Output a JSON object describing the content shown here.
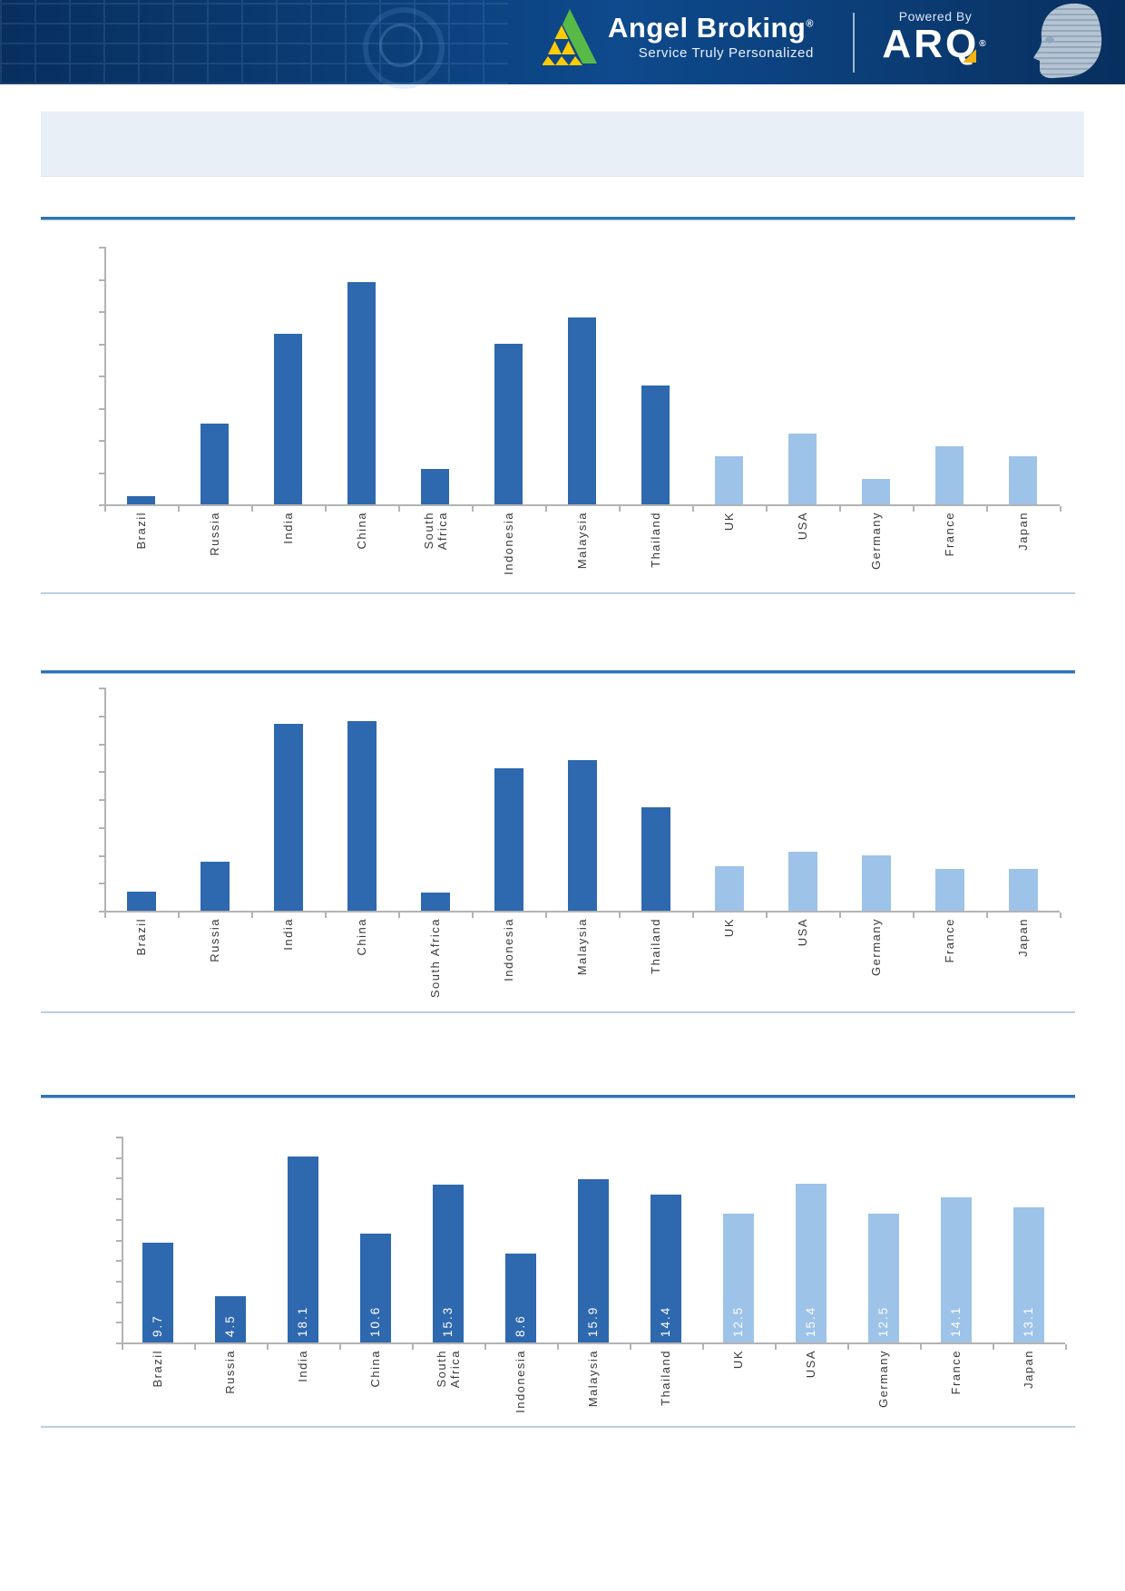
{
  "header": {
    "bg_color": "#0b3c74",
    "brand": {
      "name": "Angel Broking",
      "registered_mark": "®",
      "tagline": "Service Truly Personalized",
      "logo_green": "#58b947",
      "logo_yellow": "#ffcb05"
    },
    "powered_by": {
      "label": "Powered By",
      "product_name": "ARQ",
      "registered_mark": "®",
      "accent_yellow": "#f6b40e"
    }
  },
  "title_box": {
    "text": ""
  },
  "colors": {
    "bar_dark": "#2e68ae",
    "bar_light": "#9dc3e8",
    "rule_blue": "#2e74b5",
    "rule_blue_light": "#9cc2e5",
    "divider_light": "#b9cfe0",
    "axis_gray": "#b3b3b3",
    "category_label_text": "#3a3a3a",
    "value_label_text": "#ffffff",
    "title_box_bg": "#e9eff7"
  },
  "chart_data": [
    {
      "type": "bar",
      "title": "",
      "categories": [
        "Brazil",
        "Russia",
        "India",
        "China",
        "South\nAfrica",
        "Indonesia",
        "Malaysia",
        "Thailand",
        "UK",
        "USA",
        "Germany",
        "France",
        "Japan"
      ],
      "values": [
        0.25,
        2.5,
        5.3,
        6.9,
        1.1,
        5.0,
        5.8,
        3.7,
        1.5,
        2.2,
        0.8,
        1.8,
        1.5
      ],
      "ylim": [
        0,
        8
      ],
      "grid": false,
      "legend": false,
      "y_axis_tick_labels_visible": false,
      "data_labels": false,
      "dark_bar_count": 8,
      "note": "no numeric axis labels shown; values estimated from bar heights against tick marks"
    },
    {
      "type": "bar",
      "title": "",
      "categories": [
        "Brazil",
        "Russia",
        "India",
        "China",
        "South Africa",
        "Indonesia",
        "Malaysia",
        "Thailand",
        "UK",
        "USA",
        "Germany",
        "France",
        "Japan"
      ],
      "values": [
        0.7,
        1.75,
        6.7,
        6.8,
        0.65,
        5.1,
        5.4,
        3.7,
        1.6,
        2.1,
        2.0,
        1.5,
        1.5
      ],
      "ylim": [
        0,
        8
      ],
      "grid": false,
      "legend": false,
      "y_axis_tick_labels_visible": false,
      "data_labels": false,
      "dark_bar_count": 8,
      "note": "no numeric axis labels shown; values estimated from bar heights against tick marks"
    },
    {
      "type": "bar",
      "title": "",
      "categories": [
        "Brazil",
        "Russia",
        "India",
        "China",
        "South\nAfrica",
        "Indonesia",
        "Malaysia",
        "Thailand",
        "UK",
        "USA",
        "Germany",
        "France",
        "Japan"
      ],
      "values": [
        9.7,
        4.5,
        18.1,
        10.6,
        15.3,
        8.6,
        15.9,
        14.4,
        12.5,
        15.4,
        12.5,
        14.1,
        13.1
      ],
      "ylim": [
        0,
        20
      ],
      "grid": false,
      "legend": false,
      "y_axis_tick_labels_visible": false,
      "data_labels": true,
      "data_label_position": "inside-bottom-vertical",
      "dark_bar_count": 8
    }
  ]
}
